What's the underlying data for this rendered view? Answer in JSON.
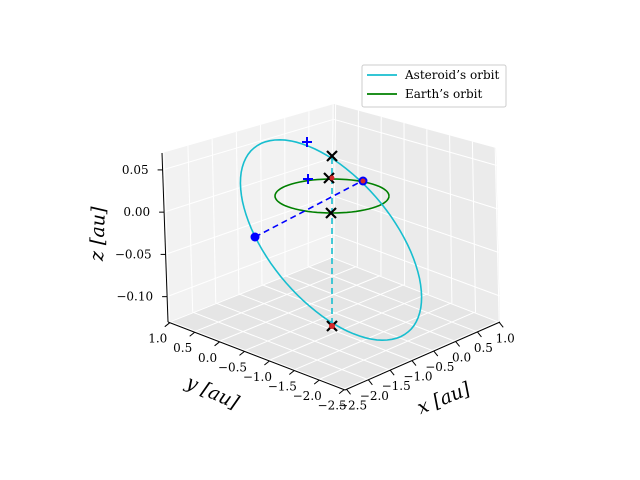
{
  "chart_data": {
    "type": "line",
    "projection": "3d",
    "xlabel": "x [au]",
    "ylabel": "y [au]",
    "zlabel": "z [au]",
    "xlim": [
      -2.5,
      1.0
    ],
    "ylim": [
      -2.5,
      1.0
    ],
    "zlim": [
      -0.13,
      0.07
    ],
    "x_ticks": [
      "−2.5",
      "−2.0",
      "−1.5",
      "−1.0",
      "−0.5",
      "0.0",
      "0.5",
      "1.0"
    ],
    "y_ticks": [
      "1.0",
      "0.5",
      "0.0",
      "−0.5",
      "−1.0",
      "−1.5",
      "−2.0",
      "−2.5"
    ],
    "z_ticks": [
      "0.05",
      "0.00",
      "−0.05",
      "−0.10"
    ],
    "grid": true,
    "legend_position": "upper-right",
    "series": [
      {
        "name": "Asteroid’s orbit",
        "color": "#17becf",
        "shape": "ellipse",
        "center": [
          -0.75,
          -0.75,
          -0.03
        ],
        "semi_axes_endpoints": {
          "a": [
            1.0,
            1.0,
            0.04
          ],
          "b": [
            -1.5,
            1.0,
            -0.02
          ]
        }
      },
      {
        "name": "Earth’s orbit",
        "color": "#008000",
        "shape": "circle",
        "center": [
          0,
          0,
          0
        ],
        "radius": 1.0
      }
    ],
    "markers": [
      {
        "type": "x",
        "color": "#000000",
        "x": 0,
        "y": 0,
        "z": 0
      },
      {
        "type": "x",
        "color": "#000000",
        "x": 0,
        "y": 0,
        "z": 0.05
      },
      {
        "type": "x",
        "color": "#000000",
        "x": -0.4,
        "y": 0.4,
        "z": 0.07
      },
      {
        "type": "x",
        "color": "#000000",
        "x": 0,
        "y": 0,
        "z": -0.125
      },
      {
        "type": "dot",
        "color": "#0000ff",
        "x": -1.6,
        "y": 1.0,
        "z": -0.025
      },
      {
        "type": "dot",
        "color": "#0000ff",
        "x": 0.65,
        "y": -0.55,
        "z": 0.04
      },
      {
        "type": "plus",
        "color": "#0000ff",
        "x": -1.2,
        "y": 1.0,
        "z": 0.09
      },
      {
        "type": "plus",
        "color": "#0000ff",
        "x": 0.1,
        "y": 0.7,
        "z": 0.045
      }
    ],
    "guide_lines": [
      {
        "style": "dashed",
        "color": "#17becf",
        "from": [
          0,
          0,
          0.05
        ],
        "to": [
          0,
          0,
          -0.125
        ]
      },
      {
        "style": "dashed",
        "color": "#0000ff",
        "from": [
          -1.6,
          1.0,
          -0.025
        ],
        "to": [
          0.65,
          -0.55,
          0.04
        ]
      }
    ]
  }
}
